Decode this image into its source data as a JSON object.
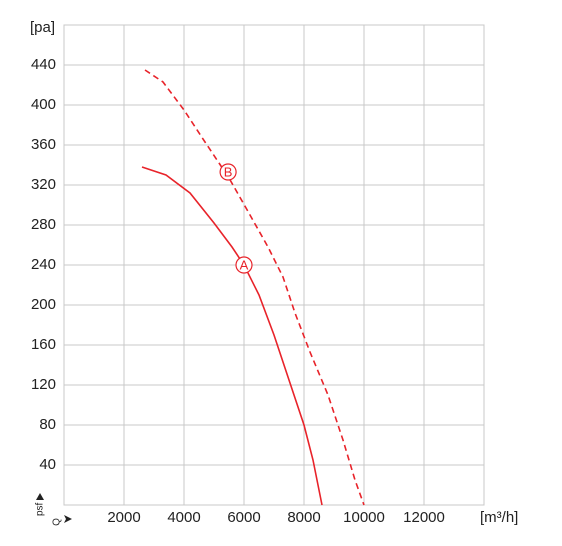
{
  "chart_data": {
    "type": "line",
    "y_label": "[pa]",
    "x_label": "[m³/h]",
    "y_symbol": "psf",
    "x_symbol": "Q",
    "xlim": [
      0,
      14000
    ],
    "xticks": [
      2000,
      4000,
      6000,
      8000,
      10000,
      12000
    ],
    "ylim": [
      0,
      480
    ],
    "yticks": [
      40,
      80,
      120,
      160,
      200,
      240,
      280,
      320,
      360,
      400,
      440
    ],
    "grid": true,
    "series": [
      {
        "color": "#e8232a",
        "style": "solid",
        "x": [
          2600,
          3400,
          4200,
          5000,
          5600,
          6000,
          6500,
          7000,
          7500,
          8000,
          8300,
          8600
        ],
        "values": [
          338,
          330,
          312,
          282,
          258,
          240,
          210,
          170,
          125,
          80,
          45,
          0
        ]
      },
      {
        "color": "#e8232a",
        "style": "dashed",
        "x": [
          2700,
          3300,
          4000,
          4700,
          5500,
          6200,
          6800,
          7300,
          7700,
          8200,
          8800,
          9300,
          9700,
          10000
        ],
        "values": [
          435,
          423,
          395,
          363,
          327,
          290,
          258,
          228,
          192,
          153,
          110,
          65,
          25,
          0
        ]
      }
    ],
    "annotations": [
      {
        "text": "A",
        "x": 6000,
        "y": 240
      },
      {
        "text": "B",
        "x": 5470,
        "y": 333
      }
    ]
  }
}
